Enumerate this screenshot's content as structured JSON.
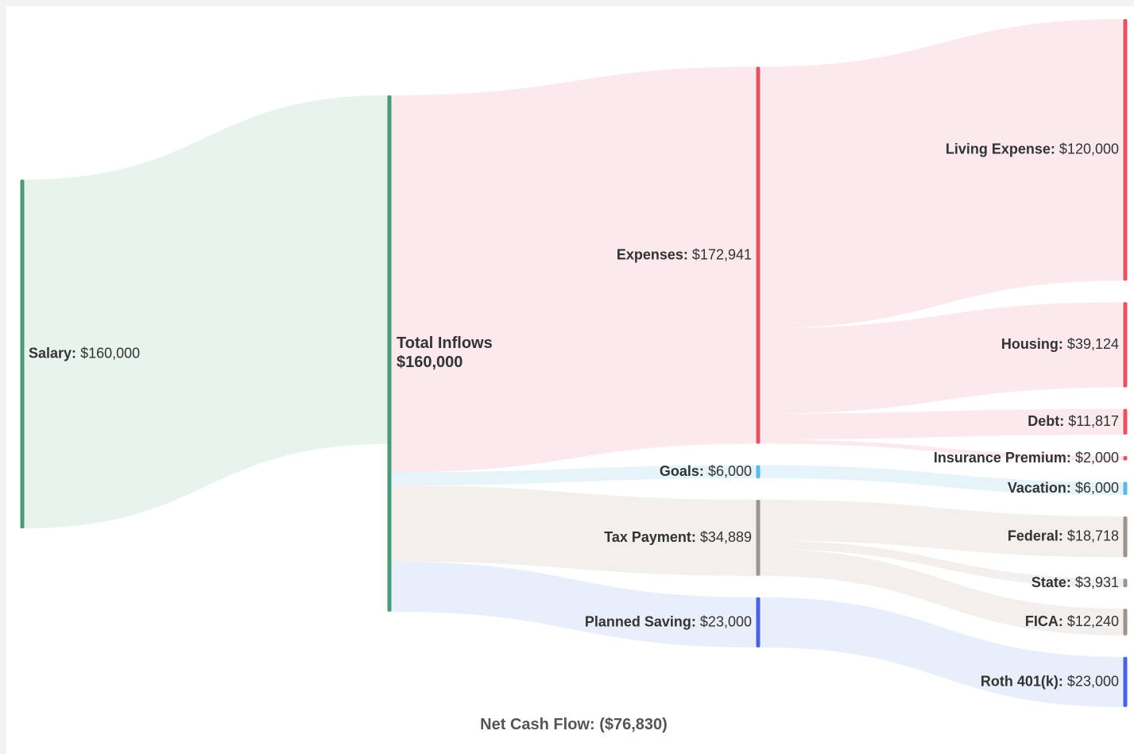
{
  "chart_data": {
    "type": "sankey",
    "nodes": [
      {
        "name": "Salary:",
        "value": 160000,
        "value_label": "$160,000",
        "color": "#4a9a7a",
        "column": 0
      },
      {
        "name": "Total Inflows",
        "value": 160000,
        "value_label": "$160,000",
        "color": "#4a9a7a",
        "column": 1
      },
      {
        "name": "Expenses:",
        "value": 172941,
        "value_label": "$172,941",
        "color": "#e05561",
        "column": 2
      },
      {
        "name": "Goals:",
        "value": 6000,
        "value_label": "$6,000",
        "color": "#5bb8e8",
        "column": 2
      },
      {
        "name": "Tax Payment:",
        "value": 34889,
        "value_label": "$34,889",
        "color": "#9a9590",
        "column": 2
      },
      {
        "name": "Planned Saving:",
        "value": 23000,
        "value_label": "$23,000",
        "color": "#4a64e0",
        "column": 2
      },
      {
        "name": "Living Expense:",
        "value": 120000,
        "value_label": "$120,000",
        "color": "#e05561",
        "column": 3
      },
      {
        "name": "Housing:",
        "value": 39124,
        "value_label": "$39,124",
        "color": "#e05561",
        "column": 3
      },
      {
        "name": "Debt:",
        "value": 11817,
        "value_label": "$11,817",
        "color": "#e05561",
        "column": 3
      },
      {
        "name": "Insurance Premium:",
        "value": 2000,
        "value_label": "$2,000",
        "color": "#e05561",
        "column": 3
      },
      {
        "name": "Vacation:",
        "value": 6000,
        "value_label": "$6,000",
        "color": "#5bb8e8",
        "column": 3
      },
      {
        "name": "Federal:",
        "value": 18718,
        "value_label": "$18,718",
        "color": "#9a9590",
        "column": 3
      },
      {
        "name": "State:",
        "value": 3931,
        "value_label": "$3,931",
        "color": "#9a9590",
        "column": 3
      },
      {
        "name": "FICA:",
        "value": 12240,
        "value_label": "$12,240",
        "color": "#9a9590",
        "column": 3
      },
      {
        "name": "Roth 401(k):",
        "value": 23000,
        "value_label": "$23,000",
        "color": "#4a64e0",
        "column": 3
      }
    ],
    "links": [
      {
        "source": 0,
        "target": 1,
        "value": 160000,
        "color": "#e8f3ee"
      },
      {
        "source": 1,
        "target": 2,
        "value": 172941,
        "color": "#fbe9ee"
      },
      {
        "source": 1,
        "target": 3,
        "value": 6000,
        "color": "#e6f4fa"
      },
      {
        "source": 1,
        "target": 4,
        "value": 34889,
        "color": "#f2efed"
      },
      {
        "source": 1,
        "target": 5,
        "value": 23000,
        "color": "#e8eefa"
      },
      {
        "source": 2,
        "target": 6,
        "value": 120000,
        "color": "#fbe9ee"
      },
      {
        "source": 2,
        "target": 7,
        "value": 39124,
        "color": "#fbe9ee"
      },
      {
        "source": 2,
        "target": 8,
        "value": 11817,
        "color": "#fbe9ee"
      },
      {
        "source": 2,
        "target": 9,
        "value": 2000,
        "color": "#fbe9ee"
      },
      {
        "source": 3,
        "target": 10,
        "value": 6000,
        "color": "#e6f4fa"
      },
      {
        "source": 4,
        "target": 11,
        "value": 18718,
        "color": "#f2efed"
      },
      {
        "source": 4,
        "target": 12,
        "value": 3931,
        "color": "#f2efed"
      },
      {
        "source": 4,
        "target": 13,
        "value": 12240,
        "color": "#f2efed"
      },
      {
        "source": 5,
        "target": 14,
        "value": 23000,
        "color": "#e8eefa"
      }
    ],
    "net_cash_flow": {
      "label": "Net Cash Flow:",
      "value": -76830,
      "value_label": "($76,830)"
    }
  }
}
